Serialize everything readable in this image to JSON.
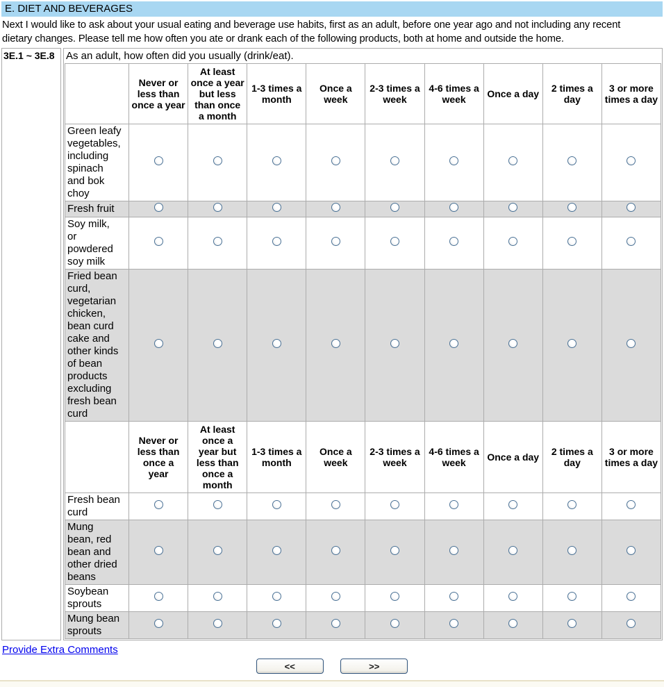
{
  "title_bar": {
    "label": "E. DIET AND BEVERAGES"
  },
  "intro_text": "Next I would like to ask about your usual eating and beverage use habits, first as an adult, before one year ago and not including any recent\ndietary changes. Please tell me how often you ate or drank each of the following products, both at home and outside the home.",
  "question": {
    "id": "3E.1 ~ 3E.8",
    "prompt": "As an adult, how often did you usually (drink/eat)."
  },
  "frequency_options_header_1": [
    "Never or\nless than\nonce a year",
    "At least\nonce a year\nbut less\nthan once\na month",
    "1-3 times a\nmonth",
    "Once a\nweek",
    "2-3 times a\nweek",
    "4-6 times a\nweek",
    "Once a day",
    "2 times a\nday",
    "3 or more\ntimes a day"
  ],
  "frequency_options_header_2": [
    "Never or\nless than\nonce a\nyear",
    "At least\nonce a\nyear but\nless than\nonce a\nmonth",
    "1-3 times a\nmonth",
    "Once a\nweek",
    "2-3 times a\nweek",
    "4-6 times a\nweek",
    "Once a day",
    "2 times a\nday",
    "3 or more\ntimes a day"
  ],
  "food_rows_section_1": [
    {
      "label": "Green leafy\nvegetables,\nincluding\nspinach\nand bok\nchoy",
      "shaded": false,
      "selected": null
    },
    {
      "label": "Fresh fruit",
      "shaded": true,
      "selected": null
    },
    {
      "label": "Soy milk,\nor\npowdered\nsoy milk",
      "shaded": false,
      "selected": null
    },
    {
      "label": "Fried bean\ncurd,\nvegetarian\nchicken,\nbean curd\ncake and\nother kinds\nof bean\nproducts\nexcluding\nfresh bean\ncurd",
      "shaded": true,
      "selected": null
    }
  ],
  "food_rows_section_2": [
    {
      "label": "Fresh bean\ncurd",
      "shaded": false,
      "selected": null
    },
    {
      "label": "Mung\nbean, red\nbean and\nother dried\nbeans",
      "shaded": true,
      "selected": null
    },
    {
      "label": "Soybean\nsprouts",
      "shaded": false,
      "selected": null
    },
    {
      "label": "Mung bean\nsprouts",
      "shaded": true,
      "selected": null
    }
  ],
  "footer": {
    "comments_link": "Provide Extra Comments",
    "back_button": "<<",
    "forward_button": ">>"
  },
  "colors": {
    "title_bar_bg": "#A8D7F2",
    "shaded_row_bg": "#DBDBDB",
    "grid_border": "#ACACAC",
    "radio_border": "#4A7195",
    "link_color": "#0000EE",
    "button_border": "#33567D",
    "footer_bar_bg": "#FBFAF3",
    "footer_bar_border": "#E8E1C8"
  }
}
